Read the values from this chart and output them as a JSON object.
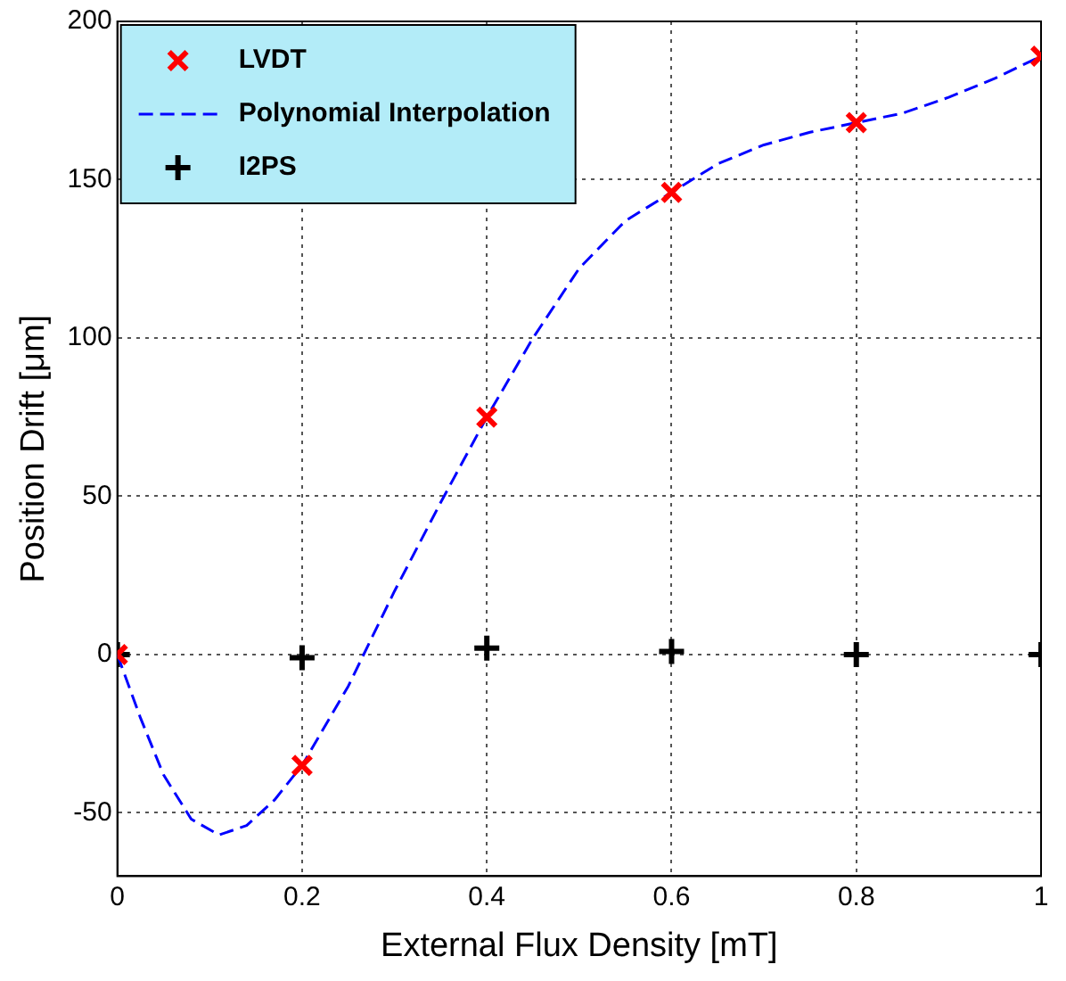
{
  "chart_data": {
    "type": "scatter",
    "xlabel": "External Flux Density [mT]",
    "ylabel": "Position Drift [μm]",
    "xlim": [
      0,
      1
    ],
    "xticks": [
      0,
      0.2,
      0.4,
      0.6,
      0.8,
      1
    ],
    "ylim": [
      -70,
      200
    ],
    "yticks": [
      -50,
      0,
      50,
      100,
      150,
      200
    ],
    "grid": true,
    "legend": "top left",
    "series": [
      {
        "name": "LVDT",
        "color": "#ff0000",
        "marker": "x",
        "x": [
          0,
          0.2,
          0.4,
          0.6,
          0.8,
          1
        ],
        "values": [
          0,
          -35,
          75,
          146,
          168,
          189
        ]
      },
      {
        "name": "Polynomial Interpolation",
        "type": "line",
        "color": "#0000ff",
        "marker": "none",
        "line_style": "dashed",
        "x": [
          0,
          0.025,
          0.05,
          0.08,
          0.11,
          0.14,
          0.17,
          0.2,
          0.25,
          0.3,
          0.35,
          0.4,
          0.45,
          0.5,
          0.55,
          0.6,
          0.65,
          0.7,
          0.75,
          0.8,
          0.85,
          0.9,
          0.95,
          1
        ],
        "values": [
          0,
          -20,
          -38,
          -52,
          -57,
          -54,
          -46,
          -35,
          -10,
          20,
          48,
          75,
          100,
          122,
          137,
          146,
          155,
          161,
          165,
          168,
          171,
          176,
          182,
          189
        ]
      },
      {
        "name": "I2PS",
        "color": "#000000",
        "marker": "cross",
        "x": [
          0,
          0.2,
          0.4,
          0.6,
          0.8,
          1
        ],
        "values": [
          0,
          -1,
          2,
          1,
          0,
          0
        ]
      }
    ]
  }
}
